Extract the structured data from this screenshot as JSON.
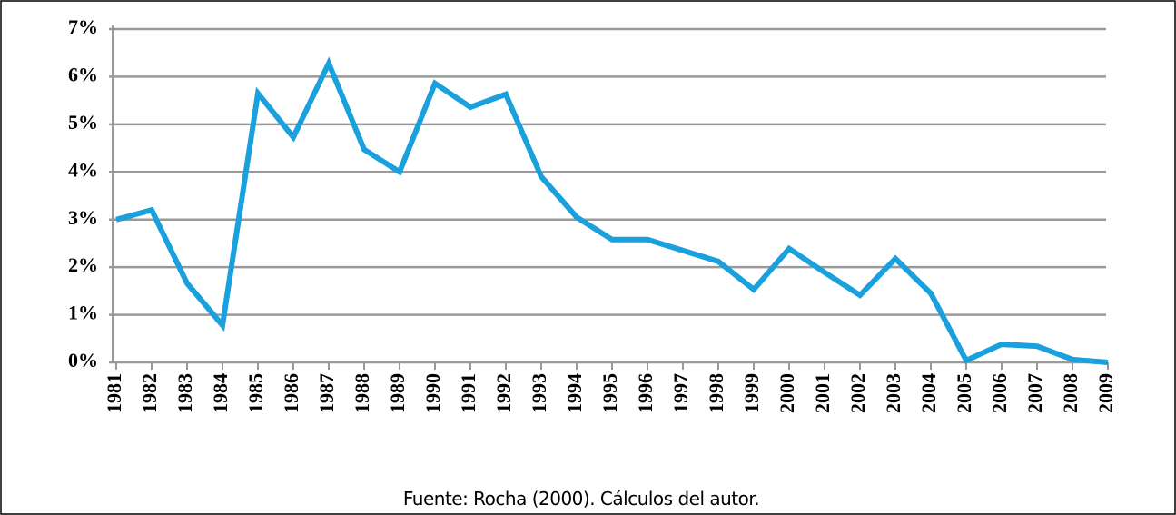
{
  "chart_data": {
    "type": "line",
    "categories": [
      "1981",
      "1982",
      "1983",
      "1984",
      "1985",
      "1986",
      "1987",
      "1988",
      "1989",
      "1990",
      "1991",
      "1992",
      "1993",
      "1994",
      "1995",
      "1996",
      "1997",
      "1998",
      "1999",
      "2000",
      "2001",
      "2002",
      "2003",
      "2004",
      "2005",
      "2006",
      "2007",
      "2008",
      "2009"
    ],
    "series": [
      {
        "color": "#1aa0dc",
        "values": [
          3.0,
          3.2,
          1.66,
          0.78,
          5.65,
          4.73,
          6.28,
          4.47,
          4.0,
          5.86,
          5.36,
          5.63,
          3.9,
          3.05,
          2.58,
          2.58,
          2.35,
          2.12,
          1.53,
          2.39,
          1.89,
          1.41,
          2.18,
          1.45,
          0.04,
          0.38,
          0.34,
          0.06,
          0.0
        ]
      }
    ],
    "ylim": [
      0,
      7
    ],
    "yticks": [
      {
        "value": 0,
        "label": "0%"
      },
      {
        "value": 1,
        "label": "1%"
      },
      {
        "value": 2,
        "label": "2%"
      },
      {
        "value": 3,
        "label": "3%"
      },
      {
        "value": 4,
        "label": "4%"
      },
      {
        "value": 5,
        "label": "5%"
      },
      {
        "value": 6,
        "label": "6%"
      },
      {
        "value": 7,
        "label": "7%"
      }
    ],
    "grid": true,
    "source": "Fuente: Rocha (2000). Cálculos del autor."
  }
}
